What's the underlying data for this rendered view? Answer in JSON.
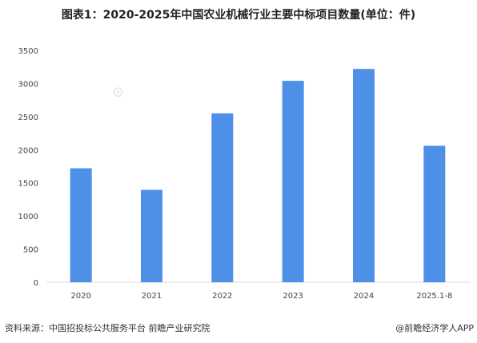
{
  "title": "图表1：2020-2025年中国农业机械行业主要中标项目数量(单位：件)",
  "chart_data": {
    "type": "bar",
    "categories": [
      "2020",
      "2021",
      "2022",
      "2023",
      "2024",
      "2025.1-8"
    ],
    "values": [
      1720,
      1395,
      2550,
      3040,
      3220,
      2060
    ],
    "ylim": [
      0,
      3500
    ],
    "yticks": [
      0,
      500,
      1000,
      1500,
      2000,
      2500,
      3000,
      3500
    ],
    "bar_color": "#4e90e8",
    "grid": false
  },
  "footer": {
    "source": "资料来源：中国招投标公共服务平台 前瞻产业研究院",
    "brand": "@前瞻经济学人APP"
  }
}
